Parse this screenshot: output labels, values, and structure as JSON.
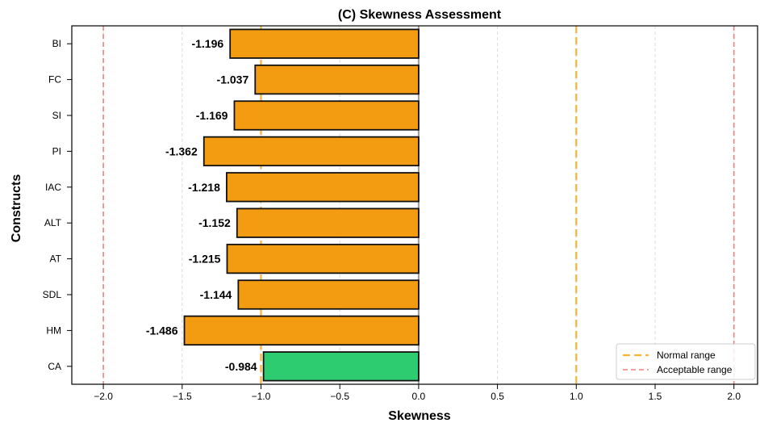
{
  "chart_data": {
    "type": "bar",
    "orientation": "horizontal",
    "title": "(C) Skewness Assessment",
    "xlabel": "Skewness",
    "ylabel": "Constructs",
    "xlim": [
      -2.2,
      2.15
    ],
    "x_ticks": [
      -2.0,
      -1.5,
      -1.0,
      -0.5,
      0.0,
      0.5,
      1.0,
      1.5,
      2.0
    ],
    "x_tick_labels": [
      "−2.0",
      "−1.5",
      "−1.0",
      "−0.5",
      "0.0",
      "0.5",
      "1.0",
      "1.5",
      "2.0"
    ],
    "grid": true,
    "categories": [
      "BI",
      "FC",
      "SI",
      "PI",
      "IAC",
      "ALT",
      "AT",
      "SDL",
      "HM",
      "CA"
    ],
    "values": [
      -1.196,
      -1.037,
      -1.169,
      -1.362,
      -1.218,
      -1.152,
      -1.215,
      -1.144,
      -1.486,
      -0.984
    ],
    "value_labels": [
      "-1.196",
      "-1.037",
      "-1.169",
      "-1.362",
      "-1.218",
      "-1.152",
      "-1.215",
      "-1.144",
      "-1.486",
      "-0.984"
    ],
    "bar_colors": [
      "#f39c12",
      "#f39c12",
      "#f39c12",
      "#f39c12",
      "#f39c12",
      "#f39c12",
      "#f39c12",
      "#f39c12",
      "#f39c12",
      "#2ecc71"
    ],
    "reference_lines": [
      {
        "name": "Normal range",
        "values": [
          -1.0,
          1.0
        ],
        "color": "#f8b235",
        "style": "dashed"
      },
      {
        "name": "Acceptable range",
        "values": [
          -2.0,
          2.0
        ],
        "color": "#f08080",
        "style": "dashed"
      }
    ],
    "zero_line": {
      "value": 0.0,
      "color": "#999999"
    },
    "legend": {
      "position": "lower-right",
      "entries": [
        "Normal range",
        "Acceptable range"
      ]
    }
  }
}
